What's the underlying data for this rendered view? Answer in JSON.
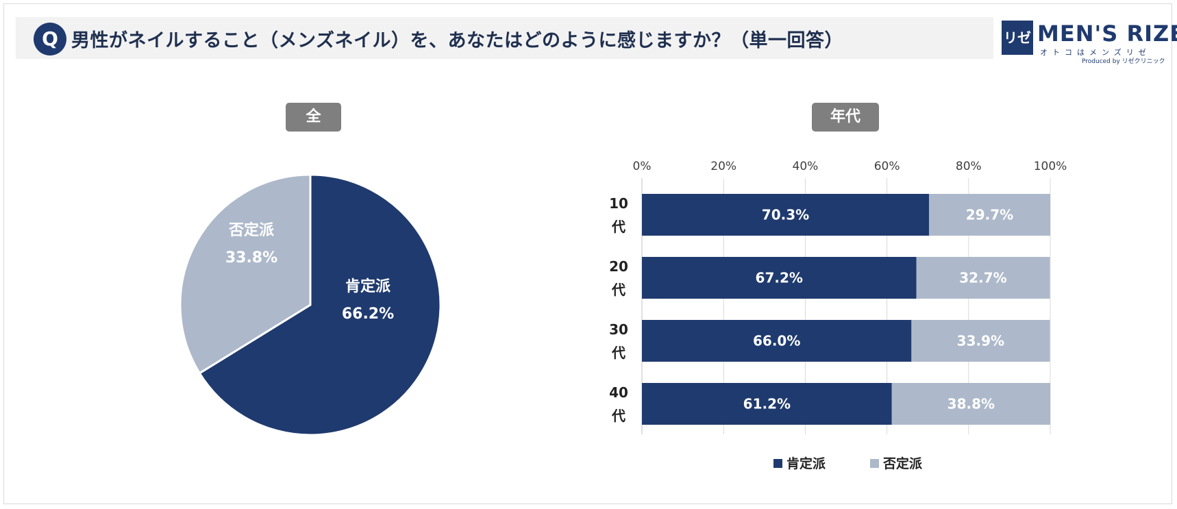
{
  "question": {
    "badge": "Q",
    "text": "男性がネイルすること（メンズネイル）を、あなたはどのように感じますか？（単一回答）"
  },
  "logo": {
    "mark": "リゼ",
    "name": "MEN'S RIZE",
    "tagline": "オトコはメンズリゼ",
    "produced": "Produced by リゼクリニック"
  },
  "colors": {
    "positive": "#1f3a6e",
    "negative": "#adb9ca",
    "pill": "#7f7f7f"
  },
  "chart_data": [
    {
      "type": "pie",
      "title": "全",
      "slices": [
        {
          "label": "肯定派",
          "value": 66.2,
          "display": "66.2%"
        },
        {
          "label": "否定派",
          "value": 33.8,
          "display": "33.8%"
        }
      ]
    },
    {
      "type": "bar",
      "orientation": "horizontal",
      "stacked": true,
      "title": "年代",
      "categories": [
        "10代",
        "20代",
        "30代",
        "40代"
      ],
      "category_lines": [
        [
          "10",
          "代"
        ],
        [
          "20",
          "代"
        ],
        [
          "30",
          "代"
        ],
        [
          "40",
          "代"
        ]
      ],
      "series": [
        {
          "name": "肯定派",
          "values": [
            70.3,
            67.2,
            66.0,
            61.2
          ],
          "labels": [
            "70.3%",
            "67.2%",
            "66.0%",
            "61.2%"
          ]
        },
        {
          "name": "否定派",
          "values": [
            29.7,
            32.7,
            33.9,
            38.8
          ],
          "labels": [
            "29.7%",
            "32.7%",
            "33.9%",
            "38.8%"
          ]
        }
      ],
      "xlim": [
        0,
        100
      ],
      "xticks": [
        "0%",
        "20%",
        "40%",
        "60%",
        "80%",
        "100%"
      ],
      "grid": true,
      "legend": "bottom"
    }
  ]
}
